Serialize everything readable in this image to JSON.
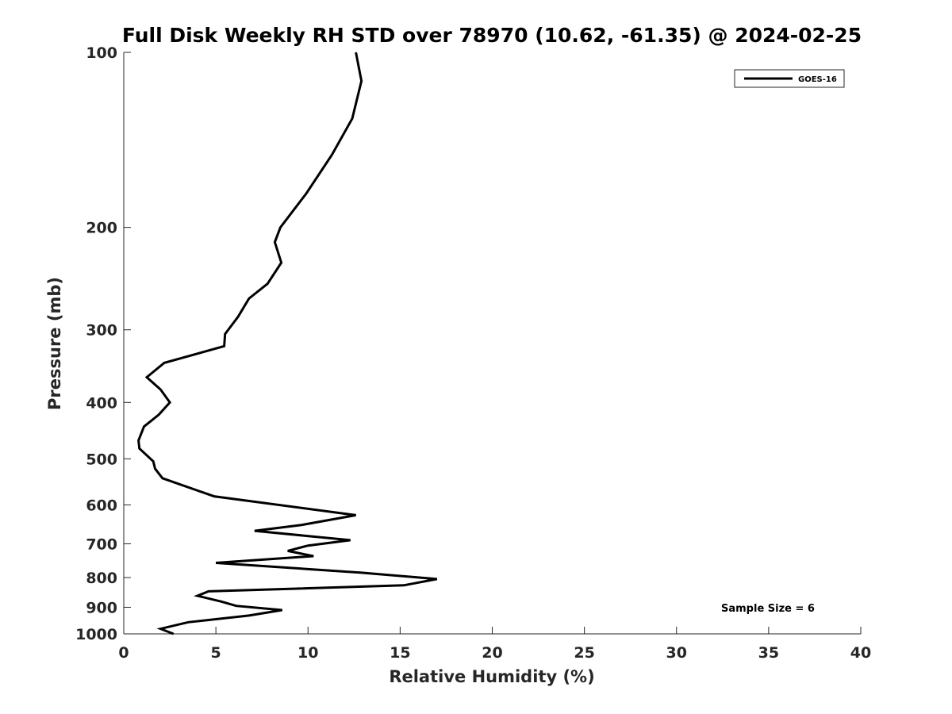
{
  "chart_data": {
    "type": "line",
    "title": "Full Disk Weekly RH STD over 78970 (10.62, -61.35) @ 2024-02-25",
    "xlabel": "Relative Humidity (%)",
    "ylabel": "Pressure (mb)",
    "xlim": [
      0,
      40
    ],
    "ylim": [
      100,
      1000
    ],
    "yscale": "log",
    "y_reversed": true,
    "grid": false,
    "x_ticks": [
      0,
      5,
      10,
      15,
      20,
      25,
      30,
      35,
      40
    ],
    "y_ticks": [
      100,
      200,
      300,
      400,
      500,
      600,
      700,
      800,
      900,
      1000
    ],
    "legend": {
      "position": "top-right",
      "entries": [
        "GOES-16"
      ]
    },
    "annotation": "Sample Size = 6",
    "series": [
      {
        "name": "GOES-16",
        "color": "#000000",
        "x": [
          12.6,
          12.9,
          12.4,
          11.3,
          9.9,
          8.5,
          8.2,
          8.55,
          7.8,
          6.8,
          6.2,
          5.5,
          5.45,
          2.2,
          1.25,
          2.0,
          2.5,
          1.9,
          1.1,
          0.8,
          0.85,
          1.6,
          1.7,
          2.1,
          4.9,
          12.6,
          9.6,
          7.1,
          12.3,
          10.0,
          8.9,
          10.3,
          5.0,
          12.9,
          17.0,
          15.2,
          4.6,
          4.0,
          5.3,
          6.1,
          8.6,
          6.8,
          3.5,
          2.0,
          2.7
        ],
        "y": [
          100,
          112,
          130,
          150,
          175,
          200,
          212,
          230,
          250,
          265,
          285,
          305,
          320,
          342,
          362,
          380,
          400,
          420,
          440,
          465,
          480,
          505,
          520,
          540,
          580,
          625,
          650,
          665,
          690,
          705,
          720,
          735,
          755,
          785,
          805,
          825,
          845,
          860,
          880,
          895,
          910,
          930,
          955,
          980,
          1000
        ]
      }
    ]
  }
}
